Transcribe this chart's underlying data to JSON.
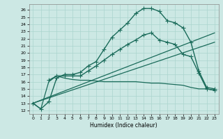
{
  "title": "",
  "xlabel": "Humidex (Indice chaleur)",
  "xlim": [
    -0.5,
    23.5
  ],
  "ylim": [
    11.5,
    26.8
  ],
  "xticks": [
    0,
    1,
    2,
    3,
    4,
    5,
    6,
    7,
    8,
    9,
    10,
    11,
    12,
    13,
    14,
    15,
    16,
    17,
    18,
    19,
    20,
    21,
    22,
    23
  ],
  "yticks": [
    12,
    13,
    14,
    15,
    16,
    17,
    18,
    19,
    20,
    21,
    22,
    23,
    24,
    25,
    26
  ],
  "background_color": "#cce8e4",
  "grid_color": "#aad4ce",
  "line_color": "#1a6b5a",
  "lines": [
    {
      "x": [
        0,
        1,
        2,
        3,
        4,
        5,
        6,
        7,
        8,
        9,
        10,
        11,
        12,
        13,
        14,
        15,
        16,
        17,
        18,
        19,
        20,
        21,
        22,
        23
      ],
      "y": [
        13.0,
        12.2,
        13.2,
        16.5,
        17.0,
        17.0,
        17.3,
        18.2,
        18.8,
        20.5,
        22.2,
        23.2,
        24.2,
        25.5,
        26.2,
        26.2,
        25.8,
        24.5,
        24.2,
        23.5,
        21.5,
        17.5,
        15.2,
        15.0
      ],
      "marker": "+",
      "markersize": 4,
      "linewidth": 1.0
    },
    {
      "x": [
        2,
        3,
        4,
        5,
        6,
        7,
        8,
        9,
        10,
        11,
        12,
        13,
        14,
        15,
        16,
        17,
        18,
        19,
        20,
        21,
        22,
        23
      ],
      "y": [
        16.2,
        16.8,
        16.8,
        16.8,
        16.8,
        17.5,
        18.2,
        19.0,
        19.8,
        20.5,
        21.2,
        21.8,
        22.5,
        22.8,
        21.8,
        21.5,
        21.2,
        19.8,
        19.5,
        17.2,
        15.0,
        14.8
      ],
      "marker": "+",
      "markersize": 4,
      "linewidth": 1.0
    },
    {
      "x": [
        0,
        1,
        2,
        3,
        4,
        5,
        6,
        7,
        8,
        9,
        10,
        11,
        12,
        13,
        14,
        15,
        16,
        17,
        18,
        19,
        20,
        21,
        22,
        23
      ],
      "y": [
        13.0,
        12.2,
        16.0,
        16.8,
        16.5,
        16.3,
        16.2,
        16.2,
        16.1,
        16.0,
        16.0,
        16.0,
        16.0,
        16.0,
        15.9,
        15.8,
        15.8,
        15.7,
        15.6,
        15.5,
        15.2,
        15.0,
        15.0,
        14.8
      ],
      "marker": null,
      "markersize": 0,
      "linewidth": 0.9
    },
    {
      "x": [
        0,
        23
      ],
      "y": [
        13.0,
        22.8
      ],
      "marker": null,
      "markersize": 0,
      "linewidth": 0.9
    },
    {
      "x": [
        0,
        23
      ],
      "y": [
        13.0,
        21.5
      ],
      "marker": null,
      "markersize": 0,
      "linewidth": 0.9
    }
  ]
}
